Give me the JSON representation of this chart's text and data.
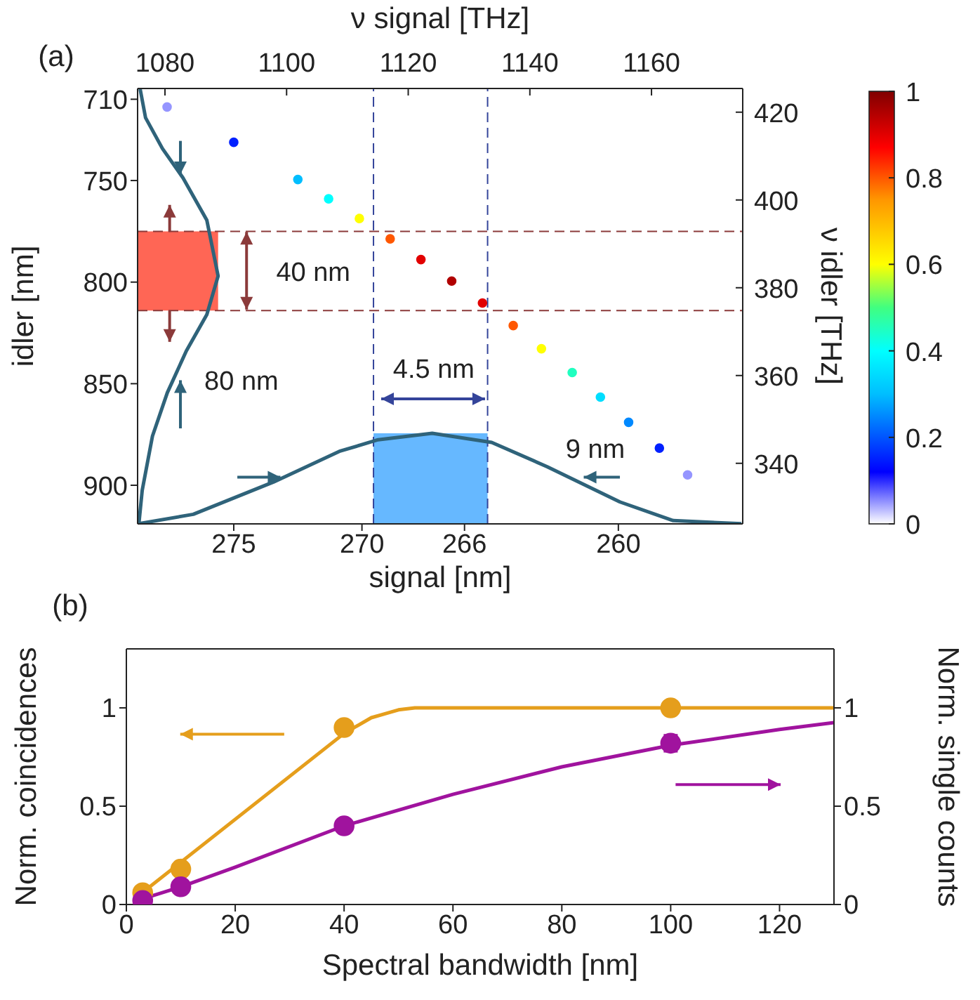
{
  "chart_data": [
    {
      "type": "scatter",
      "xlabel": "signal [nm]",
      "ylabel": "idler [nm]",
      "x2label": "ν signal [THz]",
      "y2label": "ν idler [THz]",
      "xlim": [
        278.75,
        255.15
      ],
      "xticks": [
        275,
        270,
        266,
        260
      ],
      "ylim": [
        919,
        704.7
      ],
      "yticks": [
        710,
        750,
        800,
        850,
        900
      ],
      "x2lim": [
        1075.5,
        1175
      ],
      "x2ticks": [
        1080,
        1100,
        1120,
        1140,
        1160
      ],
      "y2lim": [
        326.2,
        425.4
      ],
      "y2ticks": [
        340,
        360,
        380,
        400,
        420
      ],
      "clim": [
        0,
        1
      ],
      "cticks": [
        0,
        0.2,
        0.4,
        0.6,
        0.8,
        1
      ],
      "marker": "circle",
      "line_style": "solid",
      "series": [
        {
          "type": "scatter",
          "x": [
            277.6,
            275.0,
            272.5,
            271.3,
            270.1,
            268.9,
            267.7,
            266.5,
            265.3,
            264.1,
            263.0,
            261.8,
            260.7,
            259.6,
            258.4,
            257.3
          ],
          "values": [
            713.8,
            731.2,
            749.5,
            759.0,
            768.7,
            778.7,
            788.9,
            799.5,
            810.3,
            821.4,
            832.8,
            844.5,
            856.6,
            869.0,
            881.7,
            894.9
          ],
          "cvalues": [
            0.05,
            0.15,
            0.3,
            0.4,
            0.6,
            0.8,
            0.9,
            0.95,
            0.9,
            0.8,
            0.6,
            0.45,
            0.35,
            0.25,
            0.15,
            0.05
          ],
          "colors": [
            "#9595ff",
            "#0020ff",
            "#00beff",
            "#00ffff",
            "#ffff00",
            "#ff5800",
            "#e20000",
            "#b00000",
            "#e20000",
            "#ff5800",
            "#ffff00",
            "#20ffc0",
            "#00deff",
            "#0089ff",
            "#0020ff",
            "#9595ff"
          ]
        },
        {
          "type": "line",
          "marker": "none",
          "color": "#2f637a",
          "x": [
            278.65,
            278.44,
            277.78,
            276.98,
            276.05,
            275.61,
            276.05,
            276.85,
            277.59,
            278.17,
            278.57,
            278.7
          ],
          "values": [
            705,
            719.1,
            734.3,
            748.7,
            769.5,
            797,
            816.0,
            833.9,
            854.4,
            875.8,
            902.5,
            918.9
          ]
        },
        {
          "type": "line",
          "marker": "none",
          "color": "#2f637a",
          "x": [
            278.7,
            276.58,
            273.45,
            270.88,
            269.37,
            267.26,
            264.94,
            262.77,
            259.94,
            257.86,
            255.2
          ],
          "values": [
            918.9,
            914.3,
            898.4,
            883.3,
            877.6,
            874.4,
            878.9,
            890.9,
            908.2,
            917.4,
            918.9
          ]
        }
      ],
      "ref_lines": [
        {
          "axis": "y",
          "value": 775,
          "color": "#8b3a3a",
          "line_style": "dashed"
        },
        {
          "axis": "y",
          "value": 814,
          "color": "#8b3a3a",
          "line_style": "dashed"
        },
        {
          "axis": "x",
          "value": 269.55,
          "color": "#34449a",
          "line_style": "dashed"
        },
        {
          "axis": "x",
          "value": 265.1,
          "color": "#34449a",
          "line_style": "dashed"
        }
      ],
      "bands": [
        {
          "axis": "y",
          "from": 775,
          "to": 814,
          "color": "#ff6655"
        },
        {
          "axis": "x",
          "from": 269.55,
          "to": 265.1,
          "color": "#66b8ff"
        }
      ],
      "annotations": [
        "(a)",
        "40 nm",
        "80 nm",
        "4.5 nm",
        "9 nm"
      ]
    },
    {
      "type": "scatter",
      "xlabel": "Spectral bandwidth [nm]",
      "ylabel": "Norm. coincidences",
      "y2label": "Norm. single counts",
      "xlim": [
        0,
        130
      ],
      "xticks": [
        0,
        20,
        40,
        60,
        80,
        100,
        120
      ],
      "ylim": [
        0,
        1.3
      ],
      "yticks": [
        0,
        0.5,
        1
      ],
      "y2lim": [
        0,
        1.3
      ],
      "y2ticks": [
        0,
        0.5,
        1
      ],
      "marker": "circle",
      "line_style": "solid",
      "series": [
        {
          "type": "scatter",
          "color": "#e59e1c",
          "x": [
            3,
            10,
            40,
            100
          ],
          "values": [
            0.06,
            0.18,
            0.9,
            1.0
          ],
          "errors": [
            0.02,
            0.02,
            0.03,
            0.03
          ]
        },
        {
          "type": "line",
          "marker": "none",
          "color": "#e59e1c",
          "x": [
            2,
            40,
            45,
            50,
            53,
            130
          ],
          "values": [
            0.04,
            0.87,
            0.95,
            0.99,
            1.0,
            1.0
          ]
        },
        {
          "type": "scatter",
          "axis": "y2",
          "color": "#a0139e",
          "x": [
            3,
            10,
            40,
            100
          ],
          "values": [
            0.02,
            0.09,
            0.4,
            0.82
          ],
          "errors": [
            0.01,
            0.01,
            0.02,
            0.04
          ]
        },
        {
          "type": "line",
          "marker": "none",
          "axis": "y2",
          "color": "#a0139e",
          "x": [
            2,
            10,
            20,
            40,
            60,
            80,
            100,
            120,
            130
          ],
          "values": [
            0.02,
            0.09,
            0.19,
            0.4,
            0.56,
            0.7,
            0.81,
            0.89,
            0.925
          ]
        }
      ],
      "annotations": [
        "(b)"
      ]
    }
  ]
}
